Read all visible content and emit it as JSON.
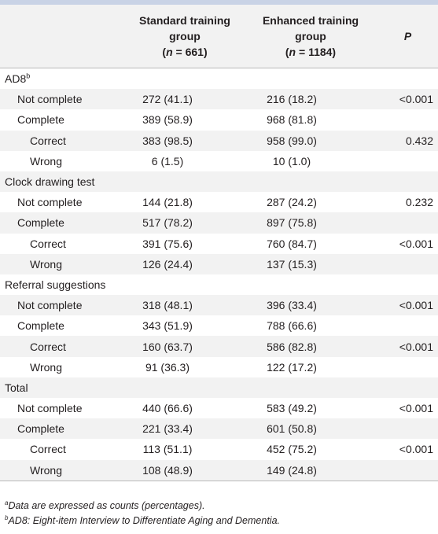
{
  "header": {
    "col1_lines": [
      "Standard training",
      "group",
      "(n = 661)"
    ],
    "col2_lines": [
      "Enhanced training",
      "group",
      "(n = 1184)"
    ],
    "p_label": "P",
    "col1_n_prefix": "(",
    "col1_n_italic": "n",
    "col1_n_rest": " = 661)",
    "col2_n_prefix": "(",
    "col2_n_italic": "n",
    "col2_n_rest": " = 1184)"
  },
  "sections": [
    {
      "title": "AD8",
      "title_sup": "b",
      "rows": [
        {
          "label": "Not complete",
          "level": 1,
          "standard": "272 (41.1)",
          "enhanced": "216 (18.2)",
          "p": "<0.001"
        },
        {
          "label": "Complete",
          "level": 1,
          "standard": "389 (58.9)",
          "enhanced": "968 (81.8)",
          "p": ""
        },
        {
          "label": "Correct",
          "level": 2,
          "standard": "383 (98.5)",
          "enhanced": "958 (99.0)",
          "p": "0.432"
        },
        {
          "label": "Wrong",
          "level": 2,
          "standard": "6 (1.5)",
          "enhanced": "10 (1.0)",
          "p": ""
        }
      ]
    },
    {
      "title": "Clock drawing test",
      "title_sup": "",
      "rows": [
        {
          "label": "Not complete",
          "level": 1,
          "standard": "144 (21.8)",
          "enhanced": "287 (24.2)",
          "p": "0.232"
        },
        {
          "label": "Complete",
          "level": 1,
          "standard": "517 (78.2)",
          "enhanced": "897 (75.8)",
          "p": ""
        },
        {
          "label": "Correct",
          "level": 2,
          "standard": "391 (75.6)",
          "enhanced": "760 (84.7)",
          "p": "<0.001"
        },
        {
          "label": "Wrong",
          "level": 2,
          "standard": "126 (24.4)",
          "enhanced": "137 (15.3)",
          "p": ""
        }
      ]
    },
    {
      "title": "Referral suggestions",
      "title_sup": "",
      "rows": [
        {
          "label": "Not complete",
          "level": 1,
          "standard": "318 (48.1)",
          "enhanced": "396 (33.4)",
          "p": "<0.001"
        },
        {
          "label": "Complete",
          "level": 1,
          "standard": "343 (51.9)",
          "enhanced": "788 (66.6)",
          "p": ""
        },
        {
          "label": "Correct",
          "level": 2,
          "standard": "160 (63.7)",
          "enhanced": "586 (82.8)",
          "p": "<0.001"
        },
        {
          "label": "Wrong",
          "level": 2,
          "standard": "91 (36.3)",
          "enhanced": "122 (17.2)",
          "p": ""
        }
      ]
    },
    {
      "title": "Total",
      "title_sup": "",
      "rows": [
        {
          "label": "Not complete",
          "level": 1,
          "standard": "440 (66.6)",
          "enhanced": "583 (49.2)",
          "p": "<0.001"
        },
        {
          "label": "Complete",
          "level": 1,
          "standard": "221 (33.4)",
          "enhanced": "601 (50.8)",
          "p": ""
        },
        {
          "label": "Correct",
          "level": 2,
          "standard": "113 (51.1)",
          "enhanced": "452 (75.2)",
          "p": "<0.001"
        },
        {
          "label": "Wrong",
          "level": 2,
          "standard": "108 (48.9)",
          "enhanced": "149 (24.8)",
          "p": ""
        }
      ]
    }
  ],
  "notes": [
    {
      "sup": "a",
      "text": "Data are expressed as counts (percentages)."
    },
    {
      "sup": "b",
      "text": "AD8: Eight-item Interview to Differentiate Aging and Dementia."
    }
  ],
  "colors": {
    "header_bg": "#f2f2f2",
    "alt_row_bg": "#f2f2f2",
    "top_rule": "#c9d3e6",
    "text": "#231f20"
  }
}
